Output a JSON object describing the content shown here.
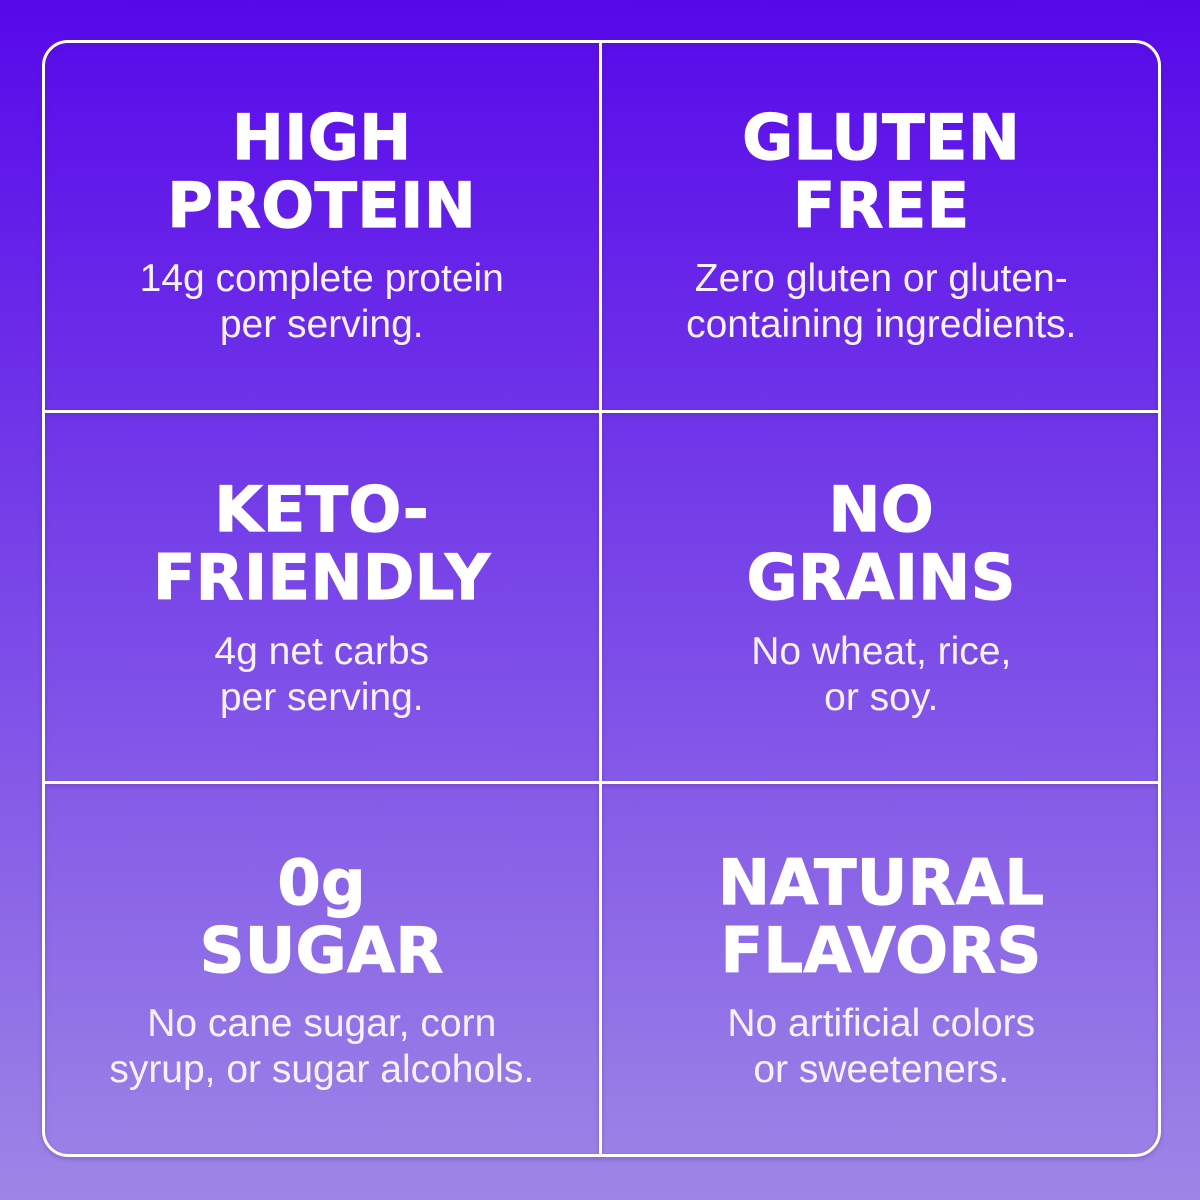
{
  "theme": {
    "background_top": "#5708EA",
    "background_mid": "#7A47E8",
    "background_bottom": "#9D86E6",
    "line_color": "#FFFFFF",
    "title_color": "#FFFFFF",
    "subtitle_color": "#F6F2FD"
  },
  "grid": {
    "rows": 3,
    "columns": 2,
    "cells": [
      {
        "id": "high-protein",
        "title": "HIGH\nPROTEIN",
        "subtitle": "14g complete protein\nper serving."
      },
      {
        "id": "gluten-free",
        "title": "GLUTEN\nFREE",
        "subtitle": "Zero gluten or gluten-\ncontaining ingredients."
      },
      {
        "id": "keto-friendly",
        "title": "KETO-\nFRIENDLY",
        "subtitle": "4g net carbs\nper serving."
      },
      {
        "id": "no-grains",
        "title": "NO\nGRAINS",
        "subtitle": "No wheat, rice,\nor soy."
      },
      {
        "id": "zero-sugar",
        "title": "0g\nSUGAR",
        "subtitle": "No cane sugar, corn\nsyrup, or sugar alcohols."
      },
      {
        "id": "natural-flavors",
        "title": "NATURAL\nFLAVORS",
        "subtitle": "No artificial colors\nor sweeteners."
      }
    ]
  }
}
